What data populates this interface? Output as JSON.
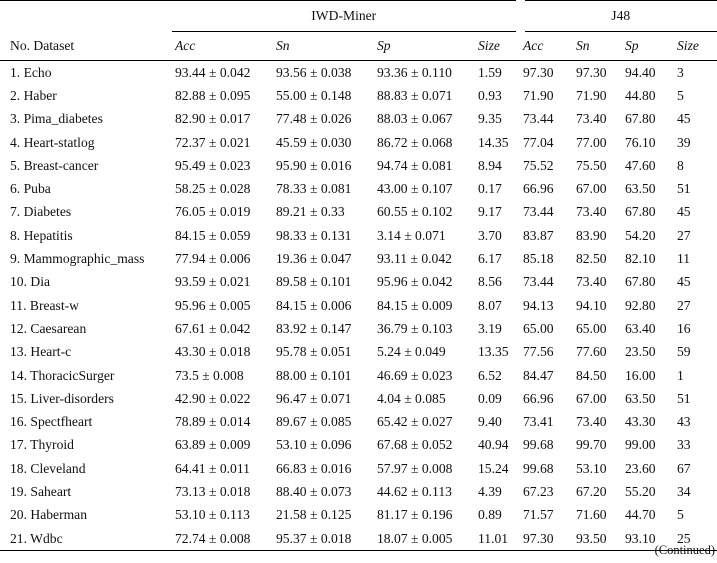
{
  "header": {
    "group_iwd": "IWD-Miner",
    "group_j48": "J48",
    "col_no_dataset": "No. Dataset",
    "iwd_cols": [
      "Acc",
      "Sn",
      "Sp",
      "Size"
    ],
    "j48_cols": [
      "Acc",
      "Sn",
      "Sp",
      "Size"
    ]
  },
  "rows": [
    [
      "1. Echo",
      "93.44 ± 0.042",
      "93.56 ± 0.038",
      "93.36 ± 0.110",
      "1.59",
      "97.30",
      "97.30",
      "94.40",
      "3"
    ],
    [
      "2. Haber",
      "82.88 ± 0.095",
      "55.00 ± 0.148",
      "88.83 ± 0.071",
      "0.93",
      "71.90",
      "71.90",
      "44.80",
      "5"
    ],
    [
      "3. Pima_diabetes",
      "82.90 ± 0.017",
      "77.48 ± 0.026",
      "88.03 ± 0.067",
      "9.35",
      "73.44",
      "73.40",
      "67.80",
      "45"
    ],
    [
      "4. Heart-statlog",
      "72.37 ± 0.021",
      "45.59 ± 0.030",
      "86.72 ± 0.068",
      "14.35",
      "77.04",
      "77.00",
      "76.10",
      "39"
    ],
    [
      "5. Breast-cancer",
      "95.49 ± 0.023",
      "95.90 ± 0.016",
      "94.74 ± 0.081",
      "8.94",
      "75.52",
      "75.50",
      "47.60",
      "8"
    ],
    [
      "6. Puba",
      "58.25 ± 0.028",
      "78.33 ± 0.081",
      "43.00 ± 0.107",
      "0.17",
      "66.96",
      "67.00",
      "63.50",
      "51"
    ],
    [
      "7. Diabetes",
      "76.05 ± 0.019",
      "89.21 ± 0.33",
      "60.55 ± 0.102",
      "9.17",
      "73.44",
      "73.40",
      "67.80",
      "45"
    ],
    [
      "8. Hepatitis",
      "84.15 ± 0.059",
      "98.33 ± 0.131",
      "3.14 ± 0.071",
      "3.70",
      "83.87",
      "83.90",
      "54.20",
      "27"
    ],
    [
      "9. Mammographic_mass",
      "77.94 ± 0.006",
      "19.36 ± 0.047",
      "93.11 ± 0.042",
      "6.17",
      "85.18",
      "82.50",
      "82.10",
      "11"
    ],
    [
      "10. Dia",
      "93.59 ± 0.021",
      "89.58 ± 0.101",
      "95.96 ± 0.042",
      "8.56",
      "73.44",
      "73.40",
      "67.80",
      "45"
    ],
    [
      "11. Breast-w",
      "95.96 ± 0.005",
      "84.15 ± 0.006",
      "84.15 ± 0.009",
      "8.07",
      "94.13",
      "94.10",
      "92.80",
      "27"
    ],
    [
      "12. Caesarean",
      "67.61 ± 0.042",
      "83.92 ± 0.147",
      "36.79 ± 0.103",
      "3.19",
      "65.00",
      "65.00",
      "63.40",
      "16"
    ],
    [
      "13. Heart-c",
      "43.30 ± 0.018",
      "95.78 ± 0.051",
      "5.24 ± 0.049",
      "13.35",
      "77.56",
      "77.60",
      "23.50",
      "59"
    ],
    [
      "14. ThoracicSurger",
      "73.5 ± 0.008",
      "88.00 ± 0.101",
      "46.69 ± 0.023",
      "6.52",
      "84.47",
      "84.50",
      "16.00",
      "1"
    ],
    [
      "15. Liver-disorders",
      "42.90 ± 0.022",
      "96.47 ± 0.071",
      "4.04 ± 0.085",
      "0.09",
      "66.96",
      "67.00",
      "63.50",
      "51"
    ],
    [
      "16. Spectfheart",
      "78.89 ± 0.014",
      "89.67 ± 0.085",
      "65.42 ± 0.027",
      "9.40",
      "73.41",
      "73.40",
      "43.30",
      "43"
    ],
    [
      "17. Thyroid",
      "63.89 ± 0.009",
      "53.10 ± 0.096",
      "67.68 ± 0.052",
      "40.94",
      "99.68",
      "99.70",
      "99.00",
      "33"
    ],
    [
      "18. Cleveland",
      "64.41 ± 0.011",
      "66.83 ± 0.016",
      "57.97 ± 0.008",
      "15.24",
      "99.68",
      "53.10",
      "23.60",
      "67"
    ],
    [
      "19. Saheart",
      "73.13 ± 0.018",
      "88.40 ± 0.073",
      "44.62 ± 0.113",
      "4.39",
      "67.23",
      "67.20",
      "55.20",
      "34"
    ],
    [
      "20. Haberman",
      "53.10 ± 0.113",
      "21.58 ± 0.125",
      "81.17 ± 0.196",
      "0.89",
      "71.57",
      "71.60",
      "44.70",
      "5"
    ],
    [
      "21. Wdbc",
      "72.74 ± 0.008",
      "95.37 ± 0.018",
      "18.07 ± 0.005",
      "11.01",
      "97.30",
      "93.50",
      "93.10",
      "25"
    ]
  ],
  "footer": {
    "continued": "(Continued)"
  }
}
